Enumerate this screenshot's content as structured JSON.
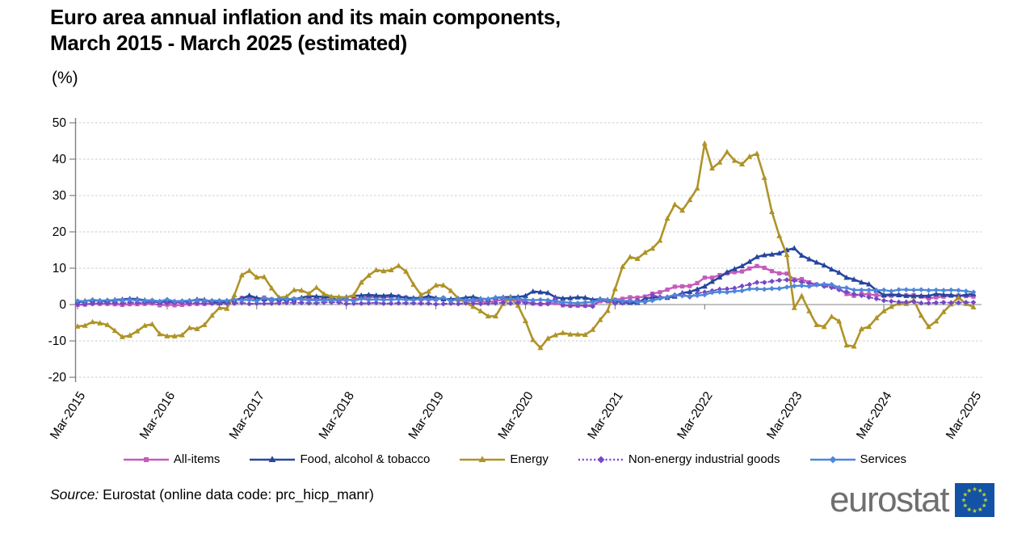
{
  "page": {
    "title_line1": "Euro area annual inflation and its main components,",
    "title_line2": "March 2015 - March 2025 (estimated)",
    "unit_label": "(%)",
    "source_prefix": "Source:",
    "source_text": " Eurostat (online data code: prc_hicp_manr)",
    "logo_text": "eurostat"
  },
  "colors": {
    "axis": "#7F7F7F",
    "gridline": "#CBCBCB",
    "zero_line": "#9C9C9C",
    "text": "#000000",
    "logo_gray": "#6F6F6F",
    "logo_blue": "#1352A5",
    "logo_star": "#BACF2C"
  },
  "chart_data": {
    "type": "line",
    "title": "Euro area annual inflation and its main components, March 2015 - March 2025 (estimated)",
    "unit": "%",
    "frequency": "monthly",
    "n_points": 121,
    "x_start": "Mar-2015",
    "x_end": "Mar-2025",
    "x_tick_labels": [
      "Mar-2015",
      "Mar-2016",
      "Mar-2017",
      "Mar-2018",
      "Mar-2019",
      "Mar-2020",
      "Mar-2021",
      "Mar-2022",
      "Mar-2023",
      "Mar-2024",
      "Mar-2025"
    ],
    "ylim": [
      -20,
      50
    ],
    "y_ticks": [
      50,
      40,
      30,
      20,
      10,
      0,
      -10,
      -20
    ],
    "grid": "horizontal dashed gridlines, solid line at zero",
    "legend_position": "bottom",
    "series": [
      {
        "name": "All-items",
        "color": "#C45CBB",
        "marker": "square",
        "line_style": "solid",
        "values": [
          -0.1,
          0.0,
          0.3,
          0.2,
          0.2,
          0.1,
          -0.1,
          0.1,
          0.1,
          0.2,
          0.3,
          -0.2,
          0.0,
          -0.2,
          -0.1,
          0.1,
          0.2,
          0.2,
          0.4,
          0.5,
          0.6,
          1.1,
          1.8,
          2.0,
          1.5,
          1.9,
          1.4,
          1.3,
          1.3,
          1.5,
          1.5,
          1.4,
          1.5,
          1.4,
          1.3,
          1.1,
          1.3,
          1.3,
          1.9,
          2.0,
          2.1,
          2.0,
          2.1,
          2.2,
          1.9,
          1.5,
          1.4,
          1.5,
          1.4,
          1.7,
          1.2,
          1.3,
          1.0,
          1.0,
          0.8,
          0.7,
          1.0,
          1.3,
          1.4,
          1.2,
          0.7,
          0.3,
          0.1,
          0.3,
          0.4,
          -0.2,
          -0.3,
          -0.3,
          -0.3,
          -0.3,
          0.9,
          0.9,
          1.3,
          1.6,
          2.0,
          1.9,
          2.2,
          3.0,
          3.4,
          4.1,
          4.9,
          5.0,
          5.1,
          5.9,
          7.4,
          7.4,
          8.1,
          8.6,
          8.9,
          9.1,
          9.9,
          10.6,
          10.1,
          9.2,
          8.6,
          8.5,
          6.9,
          7.0,
          6.1,
          5.5,
          5.3,
          5.2,
          4.3,
          2.9,
          2.4,
          2.9,
          2.8,
          2.6,
          2.4,
          2.4,
          2.6,
          2.5,
          2.6,
          2.2,
          1.7,
          2.0,
          2.2,
          2.4,
          2.5,
          2.3,
          2.2
        ]
      },
      {
        "name": "Food, alcohol & tobacco",
        "color": "#27479E",
        "marker": "triangle",
        "line_style": "solid",
        "values": [
          0.6,
          1.0,
          1.2,
          1.1,
          0.9,
          1.3,
          1.4,
          1.6,
          1.5,
          1.2,
          1.0,
          0.6,
          0.8,
          0.8,
          0.9,
          0.9,
          1.4,
          1.3,
          0.7,
          0.4,
          0.7,
          1.2,
          1.7,
          2.5,
          1.8,
          1.5,
          1.4,
          1.4,
          1.4,
          1.4,
          1.9,
          2.3,
          2.2,
          2.1,
          1.9,
          1.0,
          2.1,
          2.4,
          2.5,
          2.7,
          2.5,
          2.4,
          2.6,
          2.2,
          1.9,
          1.8,
          1.8,
          2.3,
          1.8,
          1.5,
          1.5,
          1.6,
          1.9,
          2.1,
          1.6,
          1.5,
          1.9,
          2.0,
          2.1,
          2.1,
          2.4,
          3.6,
          3.4,
          3.2,
          2.0,
          1.7,
          1.8,
          2.0,
          1.9,
          1.3,
          1.5,
          1.3,
          1.1,
          0.6,
          0.5,
          0.5,
          1.6,
          2.0,
          2.0,
          1.9,
          2.2,
          3.2,
          3.5,
          4.2,
          5.0,
          6.3,
          7.5,
          8.9,
          9.8,
          10.6,
          11.8,
          13.1,
          13.6,
          13.8,
          14.1,
          15.0,
          15.5,
          13.5,
          12.5,
          11.6,
          10.8,
          9.7,
          8.8,
          7.4,
          6.9,
          6.1,
          5.6,
          3.9,
          2.6,
          2.8,
          2.6,
          2.4,
          2.3,
          2.4,
          2.4,
          2.9,
          2.7,
          2.6,
          2.3,
          2.7,
          2.9
        ]
      },
      {
        "name": "Energy",
        "color": "#AF9327",
        "marker": "triangle",
        "line_style": "solid",
        "values": [
          -6.0,
          -5.8,
          -4.8,
          -5.1,
          -5.6,
          -7.2,
          -8.9,
          -8.5,
          -7.3,
          -5.8,
          -5.4,
          -8.1,
          -8.7,
          -8.7,
          -8.4,
          -6.4,
          -6.7,
          -5.6,
          -3.0,
          -0.9,
          -1.1,
          2.6,
          8.1,
          9.3,
          7.5,
          7.6,
          4.5,
          1.9,
          2.2,
          4.0,
          3.9,
          3.0,
          4.7,
          2.9,
          2.2,
          2.1,
          2.0,
          2.6,
          6.1,
          8.0,
          9.5,
          9.2,
          9.5,
          10.7,
          9.1,
          5.5,
          2.7,
          3.6,
          5.3,
          5.3,
          3.8,
          1.7,
          0.5,
          -0.6,
          -1.8,
          -3.2,
          -3.2,
          0.2,
          1.9,
          -0.3,
          -4.5,
          -9.7,
          -11.9,
          -9.3,
          -8.4,
          -7.8,
          -8.2,
          -8.2,
          -8.3,
          -6.9,
          -4.2,
          -1.7,
          4.3,
          10.4,
          13.1,
          12.6,
          14.3,
          15.4,
          17.6,
          23.7,
          27.5,
          25.9,
          28.8,
          32.0,
          44.3,
          37.5,
          39.1,
          42.0,
          39.6,
          38.6,
          40.7,
          41.5,
          34.9,
          25.5,
          18.9,
          13.7,
          -0.9,
          2.4,
          -1.8,
          -5.6,
          -6.1,
          -3.3,
          -4.6,
          -11.2,
          -11.5,
          -6.7,
          -6.1,
          -3.7,
          -1.8,
          -0.6,
          0.3,
          0.2,
          1.2,
          -3.0,
          -6.1,
          -4.6,
          -2.0,
          0.1,
          1.9,
          0.2,
          -0.7
        ]
      },
      {
        "name": "Non-energy industrial goods",
        "color": "#7348C6",
        "marker": "diamond",
        "line_style": "dotted",
        "values": [
          0.1,
          0.1,
          0.2,
          0.4,
          0.4,
          0.4,
          0.3,
          0.6,
          0.5,
          0.5,
          0.7,
          0.7,
          0.5,
          0.5,
          0.5,
          0.4,
          0.4,
          0.3,
          0.3,
          0.3,
          0.3,
          0.3,
          0.5,
          0.2,
          0.3,
          0.3,
          0.3,
          0.4,
          0.5,
          0.5,
          0.5,
          0.4,
          0.4,
          0.6,
          0.6,
          0.6,
          0.2,
          0.3,
          0.3,
          0.4,
          0.5,
          0.3,
          0.3,
          0.4,
          0.4,
          0.4,
          0.3,
          0.3,
          0.1,
          0.2,
          0.3,
          0.2,
          0.4,
          0.3,
          0.2,
          0.3,
          0.4,
          0.5,
          0.3,
          0.5,
          0.5,
          0.3,
          0.2,
          0.2,
          1.6,
          -0.1,
          -0.3,
          -0.1,
          -0.3,
          -0.5,
          1.5,
          1.0,
          0.3,
          0.4,
          0.7,
          1.2,
          0.7,
          2.6,
          2.1,
          2.0,
          2.4,
          2.9,
          2.1,
          3.1,
          3.4,
          3.8,
          4.2,
          4.3,
          4.5,
          5.1,
          5.5,
          6.1,
          6.1,
          6.4,
          6.7,
          6.8,
          6.6,
          6.2,
          5.8,
          5.5,
          5.0,
          4.7,
          4.1,
          3.5,
          2.9,
          2.5,
          2.0,
          1.6,
          1.1,
          0.9,
          0.7,
          0.7,
          0.8,
          0.4,
          0.4,
          0.5,
          0.6,
          0.5,
          0.5,
          0.6,
          0.6
        ]
      },
      {
        "name": "Services",
        "color": "#4D87D9",
        "marker": "diamond",
        "line_style": "solid",
        "values": [
          1.0,
          0.9,
          1.3,
          1.1,
          1.2,
          1.2,
          1.2,
          1.3,
          1.2,
          1.1,
          1.2,
          0.9,
          1.4,
          0.9,
          1.0,
          1.1,
          1.2,
          1.1,
          1.1,
          1.1,
          1.1,
          1.3,
          1.2,
          1.3,
          1.0,
          1.8,
          1.3,
          1.6,
          1.5,
          1.6,
          1.5,
          1.2,
          1.2,
          1.2,
          1.2,
          1.3,
          1.5,
          1.0,
          1.6,
          1.3,
          1.4,
          1.3,
          1.3,
          1.5,
          1.3,
          1.3,
          1.6,
          1.4,
          1.4,
          1.9,
          1.0,
          1.6,
          1.2,
          1.3,
          1.5,
          1.5,
          1.9,
          1.8,
          1.5,
          1.6,
          1.3,
          1.2,
          1.3,
          1.2,
          0.9,
          0.7,
          0.5,
          0.4,
          0.6,
          0.7,
          1.4,
          1.2,
          1.3,
          0.9,
          1.1,
          0.7,
          0.9,
          1.1,
          1.7,
          2.1,
          2.7,
          2.4,
          2.3,
          2.5,
          2.7,
          3.3,
          3.5,
          3.4,
          3.7,
          3.8,
          4.3,
          4.3,
          4.2,
          4.4,
          4.4,
          4.8,
          5.1,
          5.2,
          5.0,
          5.4,
          5.6,
          5.5,
          4.7,
          4.6,
          4.0,
          4.0,
          4.0,
          3.9,
          4.0,
          3.7,
          4.1,
          4.1,
          4.0,
          4.1,
          3.9,
          4.0,
          3.9,
          4.0,
          3.9,
          3.7,
          3.4
        ]
      }
    ]
  }
}
